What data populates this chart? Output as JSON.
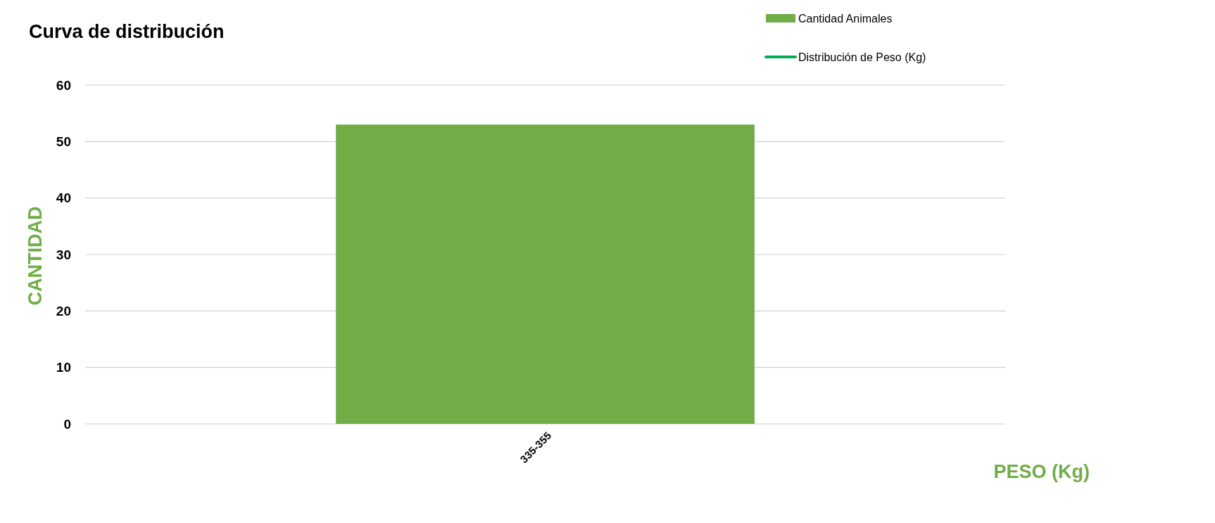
{
  "chart_data": {
    "type": "bar",
    "title": "Curva de distribución",
    "xlabel": "PESO (Kg)",
    "ylabel": "CANTIDAD",
    "categories": [
      "335-355"
    ],
    "series": [
      {
        "name": "Cantidad Animales",
        "color": "#70ad47",
        "values": [
          53
        ]
      },
      {
        "name": "Distribución de Peso (Kg)",
        "type": "line",
        "color": "#00b050",
        "values": [
          null
        ]
      }
    ],
    "ylim": [
      0,
      60
    ],
    "yticks": [
      0,
      10,
      20,
      30,
      40,
      50,
      60
    ],
    "grid": "y",
    "legend": "top right"
  }
}
